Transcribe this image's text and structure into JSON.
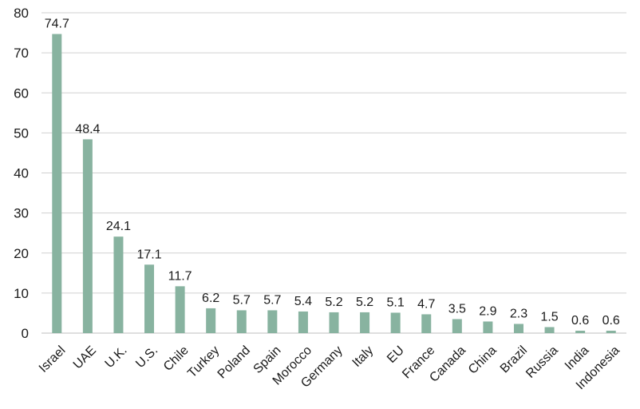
{
  "chart_data": {
    "type": "bar",
    "title": "",
    "xlabel": "",
    "ylabel": "",
    "ylim": [
      0,
      80
    ],
    "yticks": [
      0,
      10,
      20,
      30,
      40,
      50,
      60,
      70,
      80
    ],
    "grid": true,
    "bar_color": "#88b3a0",
    "categories": [
      "Israel",
      "UAE",
      "U.K.",
      "U.S.",
      "Chile",
      "Turkey",
      "Poland",
      "Spain",
      "Morocco",
      "Germany",
      "Italy",
      "EU",
      "France",
      "Canada",
      "China",
      "Brazil",
      "Russia",
      "India",
      "Indonesia"
    ],
    "values": [
      74.7,
      48.4,
      24.1,
      17.1,
      11.7,
      6.2,
      5.7,
      5.7,
      5.4,
      5.2,
      5.2,
      5.1,
      4.7,
      3.5,
      2.9,
      2.3,
      1.5,
      0.6,
      0.6
    ],
    "data_labels": [
      "74.7",
      "48.4",
      "24.1",
      "17.1",
      "11.7",
      "6.2",
      "5.7",
      "5.7",
      "5.4",
      "5.2",
      "5.2",
      "5.1",
      "4.7",
      "3.5",
      "2.9",
      "2.3",
      "1.5",
      "0.6",
      "0.6"
    ]
  }
}
